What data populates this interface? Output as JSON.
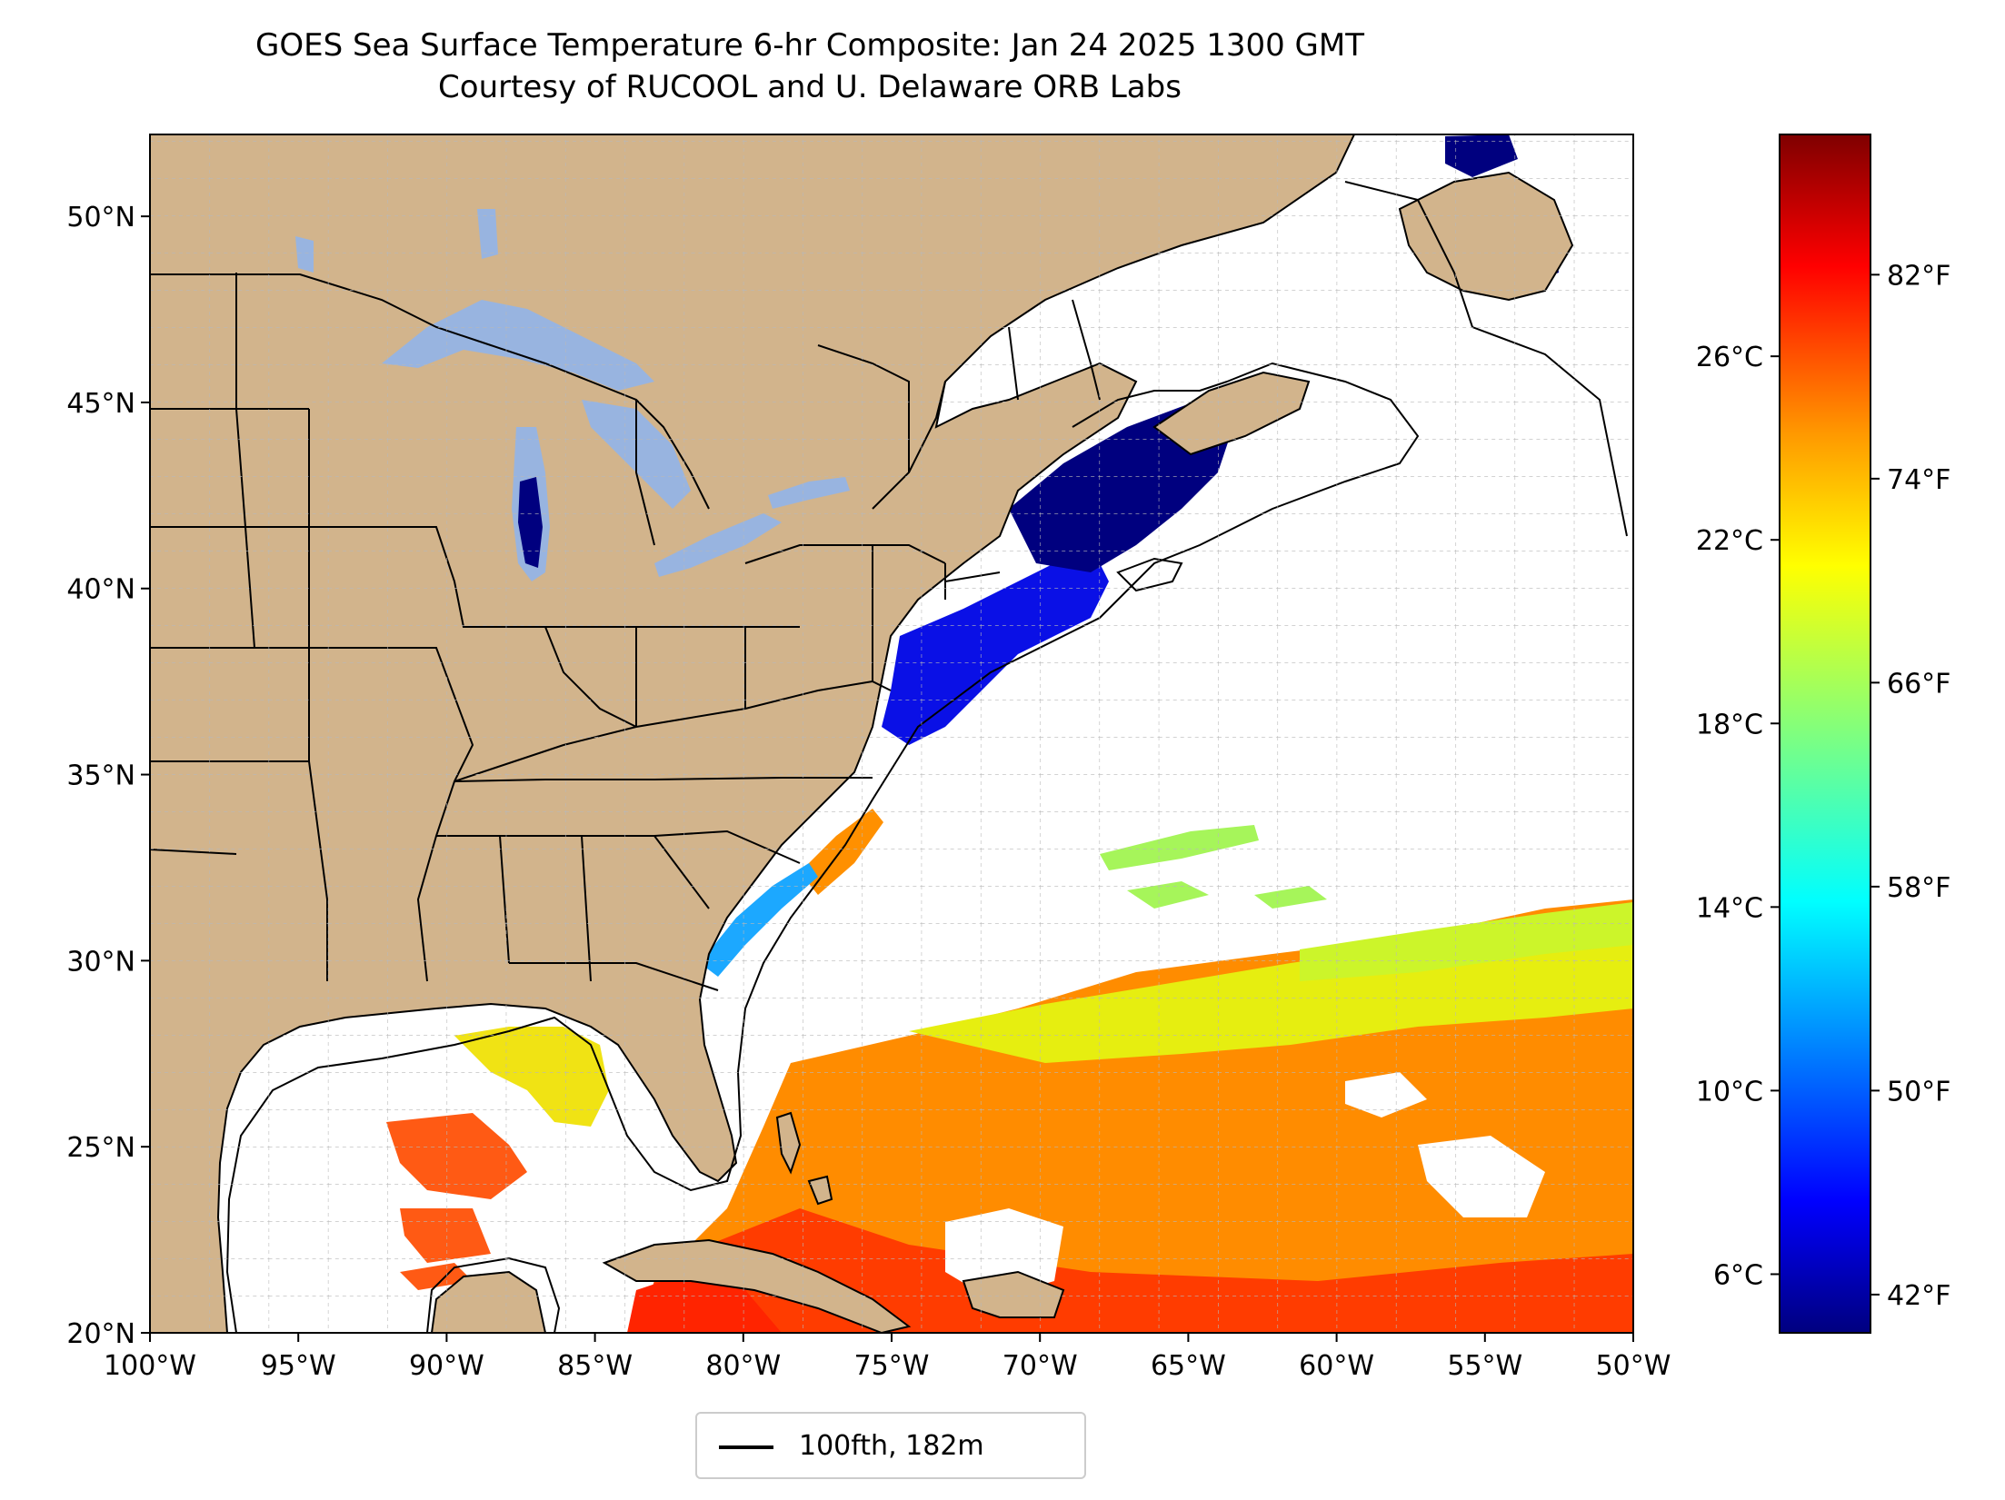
{
  "title": "GOES Sea Surface Temperature 6-hr Composite: Jan 24 2025 1300 GMT",
  "subtitle": "Courtesy of RUCOOL and U. Delaware ORB Labs",
  "map": {
    "lon_range": [
      -100,
      -50
    ],
    "lat_range": [
      20,
      52.2
    ],
    "grid": true,
    "land_color": "#d2b48c",
    "lake_color": "#98b4e0",
    "lon_ticks": [
      {
        "value": -100,
        "label": "100°W"
      },
      {
        "value": -95,
        "label": "95°W"
      },
      {
        "value": -90,
        "label": "90°W"
      },
      {
        "value": -85,
        "label": "85°W"
      },
      {
        "value": -80,
        "label": "80°W"
      },
      {
        "value": -75,
        "label": "75°W"
      },
      {
        "value": -70,
        "label": "70°W"
      },
      {
        "value": -65,
        "label": "65°W"
      },
      {
        "value": -60,
        "label": "60°W"
      },
      {
        "value": -55,
        "label": "55°W"
      },
      {
        "value": -50,
        "label": "50°W"
      }
    ],
    "lat_ticks": [
      {
        "value": 20,
        "label": "20°N"
      },
      {
        "value": 25,
        "label": "25°N"
      },
      {
        "value": 30,
        "label": "30°N"
      },
      {
        "value": 35,
        "label": "35°N"
      },
      {
        "value": 40,
        "label": "40°N"
      },
      {
        "value": 45,
        "label": "45°N"
      },
      {
        "value": 50,
        "label": "50°N"
      }
    ]
  },
  "colorbar": {
    "colormap": "jet",
    "range_f": [
      40.5,
      87.5
    ],
    "colors": [
      "#00007f",
      "#0000ff",
      "#007fff",
      "#00ffff",
      "#7fff7f",
      "#ffff00",
      "#ff7f00",
      "#ff0000",
      "#7f0000"
    ],
    "celsius_ticks": [
      {
        "value": 6,
        "label": "6°C"
      },
      {
        "value": 10,
        "label": "10°C"
      },
      {
        "value": 14,
        "label": "14°C"
      },
      {
        "value": 18,
        "label": "18°C"
      },
      {
        "value": 22,
        "label": "22°C"
      },
      {
        "value": 26,
        "label": "26°C"
      }
    ],
    "fahrenheit_ticks": [
      {
        "value": 42,
        "label": "42°F"
      },
      {
        "value": 50,
        "label": "50°F"
      },
      {
        "value": 58,
        "label": "58°F"
      },
      {
        "value": 66,
        "label": "66°F"
      },
      {
        "value": 74,
        "label": "74°F"
      },
      {
        "value": 82,
        "label": "82°F"
      }
    ]
  },
  "legend": {
    "label": "100fth, 182m",
    "line_color": "#000000"
  }
}
